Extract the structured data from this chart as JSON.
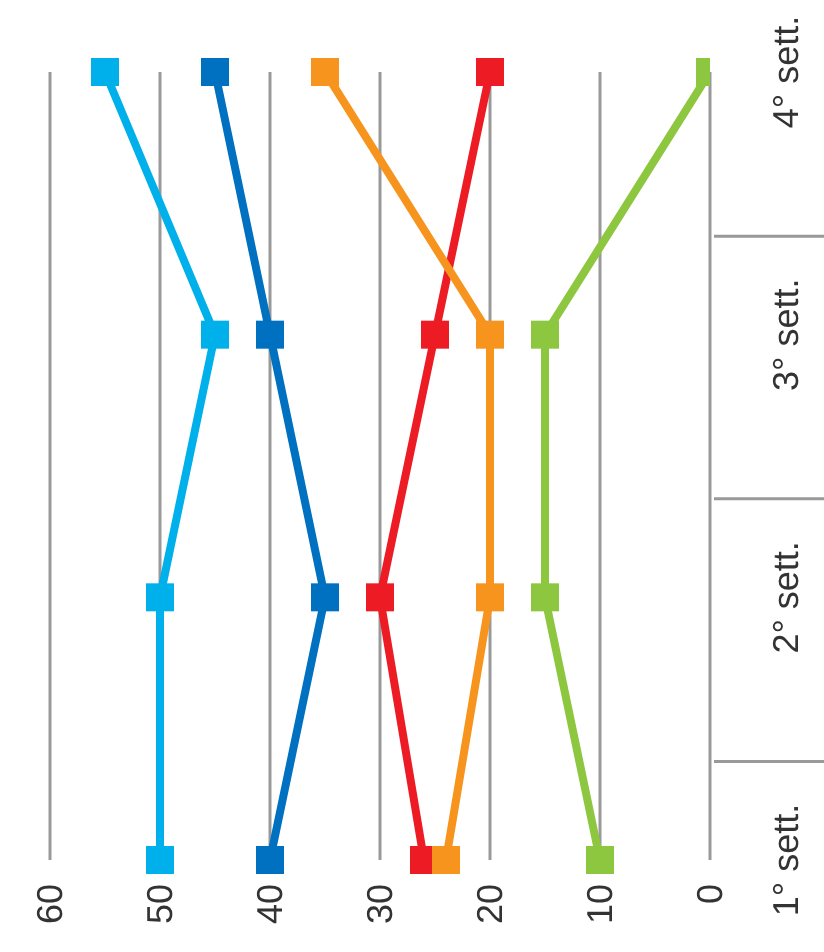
{
  "chart_data": {
    "type": "line",
    "orientation": "horizontal",
    "categories": [
      "4° sett.",
      "3° sett.",
      "2° sett.",
      "1° sett."
    ],
    "series": [
      {
        "color": "#00b0ea",
        "values": [
          55,
          45,
          50,
          50
        ]
      },
      {
        "color": "#0070c0",
        "values": [
          45,
          40,
          35,
          40
        ]
      },
      {
        "color": "#ed1c24",
        "values": [
          20,
          25,
          30,
          26
        ]
      },
      {
        "color": "#f7941d",
        "values": [
          35,
          20,
          20,
          24
        ]
      },
      {
        "color": "#8dc63f",
        "values": [
          0,
          15,
          15,
          10
        ]
      }
    ],
    "xlim": [
      60,
      0
    ],
    "xticks": [
      60,
      50,
      40,
      30,
      20,
      10,
      0
    ],
    "grid": "x",
    "marker": "square",
    "line_style": "solid"
  }
}
